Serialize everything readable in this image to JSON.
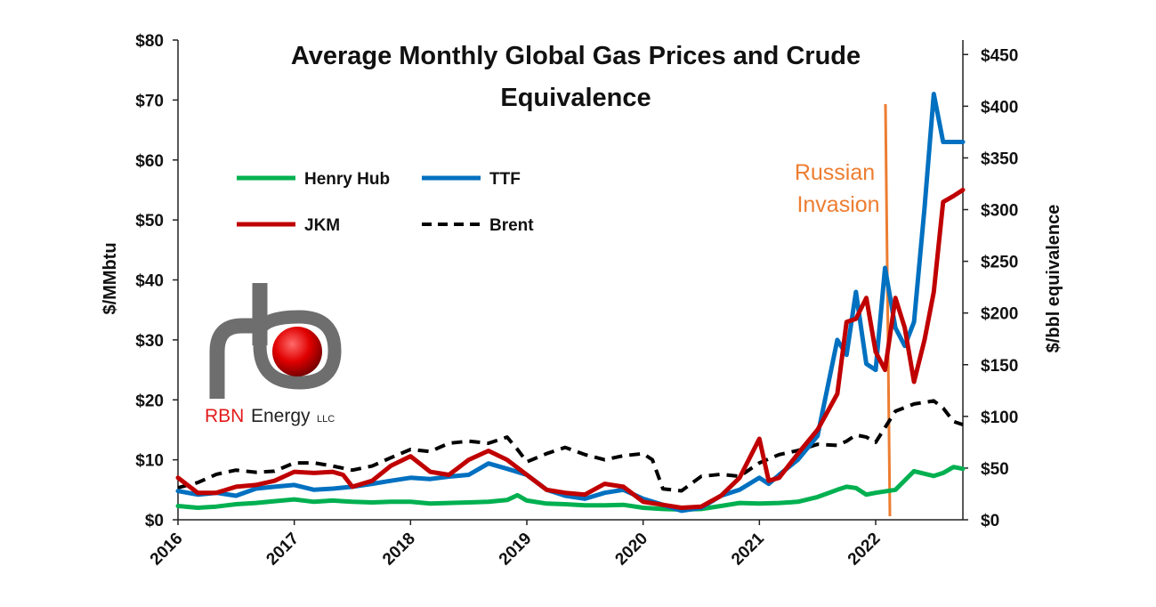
{
  "chart_data": {
    "type": "line",
    "title_lines": [
      "Average Monthly Global Gas Prices and Crude",
      "Equivalence"
    ],
    "ylabel": "$/MMbtu",
    "y2label": "$/bbl equivalence",
    "ylim": [
      0,
      80
    ],
    "y2lim": [
      0,
      464
    ],
    "yticks": [
      "$0",
      "$10",
      "$20",
      "$30",
      "$40",
      "$50",
      "$60",
      "$70",
      "$80"
    ],
    "y2ticks": [
      "$0",
      "$50",
      "$100",
      "$150",
      "$200",
      "$250",
      "$300",
      "$350",
      "$400",
      "$450"
    ],
    "xticks": [
      "2016",
      "2017",
      "2018",
      "2019",
      "2020",
      "2021",
      "2022"
    ],
    "xlim": [
      2016,
      2022.75
    ],
    "annotation": {
      "lines": [
        "Russian",
        "Invasion"
      ],
      "x": 2022.15,
      "color": "#ED7D31"
    },
    "series": [
      {
        "name": "Henry Hub",
        "color": "#00B050",
        "dash": false,
        "axis": "left",
        "x": [
          2016,
          2016.17,
          2016.33,
          2016.5,
          2016.67,
          2016.83,
          2017,
          2017.17,
          2017.33,
          2017.5,
          2017.67,
          2017.83,
          2018,
          2018.17,
          2018.33,
          2018.5,
          2018.67,
          2018.83,
          2018.92,
          2019,
          2019.17,
          2019.33,
          2019.5,
          2019.67,
          2019.83,
          2020,
          2020.17,
          2020.33,
          2020.5,
          2020.67,
          2020.83,
          2021,
          2021.17,
          2021.33,
          2021.5,
          2021.67,
          2021.75,
          2021.83,
          2021.92,
          2022,
          2022.17,
          2022.33,
          2022.5,
          2022.58,
          2022.67,
          2022.75
        ],
        "values": [
          2.3,
          2.0,
          2.2,
          2.6,
          2.8,
          3.1,
          3.4,
          3.0,
          3.2,
          3.0,
          2.9,
          3.0,
          3.0,
          2.7,
          2.8,
          2.9,
          3.0,
          3.3,
          4.1,
          3.2,
          2.7,
          2.6,
          2.4,
          2.4,
          2.5,
          2.0,
          1.8,
          1.7,
          1.8,
          2.3,
          2.8,
          2.7,
          2.8,
          3.0,
          3.8,
          5.0,
          5.5,
          5.3,
          4.2,
          4.5,
          5.0,
          8.1,
          7.3,
          7.8,
          8.8,
          8.5
        ]
      },
      {
        "name": "TTF",
        "color": "#0070C0",
        "dash": false,
        "axis": "left",
        "x": [
          2016,
          2016.17,
          2016.33,
          2016.5,
          2016.67,
          2016.83,
          2017,
          2017.17,
          2017.33,
          2017.5,
          2017.67,
          2017.83,
          2018,
          2018.17,
          2018.33,
          2018.5,
          2018.67,
          2018.83,
          2019,
          2019.17,
          2019.33,
          2019.5,
          2019.67,
          2019.83,
          2020,
          2020.17,
          2020.33,
          2020.5,
          2020.67,
          2020.83,
          2021,
          2021.08,
          2021.17,
          2021.33,
          2021.5,
          2021.67,
          2021.75,
          2021.83,
          2021.92,
          2022,
          2022.08,
          2022.17,
          2022.25,
          2022.33,
          2022.42,
          2022.5,
          2022.58,
          2022.67,
          2022.75
        ],
        "values": [
          4.8,
          4.2,
          4.5,
          4.0,
          5.2,
          5.5,
          5.8,
          5.0,
          5.2,
          5.5,
          6.0,
          6.5,
          7.0,
          6.8,
          7.2,
          7.5,
          9.4,
          8.5,
          7.5,
          5.0,
          4.0,
          3.5,
          4.5,
          5.0,
          3.5,
          2.5,
          1.5,
          2.0,
          4.0,
          5.0,
          7.0,
          6.0,
          7.5,
          10.0,
          14.0,
          30.0,
          27.5,
          38.0,
          26.0,
          25.0,
          42.0,
          32.0,
          29.0,
          33.0,
          52.0,
          71.0,
          63.0,
          63.0,
          63.0
        ]
      },
      {
        "name": "JKM",
        "color": "#C00000",
        "dash": false,
        "axis": "left",
        "x": [
          2016,
          2016.17,
          2016.33,
          2016.5,
          2016.67,
          2016.83,
          2017,
          2017.17,
          2017.33,
          2017.42,
          2017.5,
          2017.67,
          2017.83,
          2018,
          2018.17,
          2018.33,
          2018.5,
          2018.67,
          2018.83,
          2019,
          2019.17,
          2019.33,
          2019.5,
          2019.67,
          2019.83,
          2020,
          2020.17,
          2020.33,
          2020.5,
          2020.67,
          2020.83,
          2021,
          2021.08,
          2021.17,
          2021.33,
          2021.5,
          2021.67,
          2021.75,
          2021.83,
          2021.92,
          2022,
          2022.08,
          2022.17,
          2022.25,
          2022.33,
          2022.42,
          2022.5,
          2022.58,
          2022.67,
          2022.75
        ],
        "values": [
          7.0,
          4.5,
          4.5,
          5.5,
          5.8,
          6.5,
          8.0,
          7.8,
          8.0,
          7.5,
          5.5,
          6.5,
          9.0,
          10.6,
          8.0,
          7.5,
          10.0,
          11.5,
          10.0,
          7.5,
          5.0,
          4.5,
          4.2,
          6.0,
          5.5,
          3.0,
          2.5,
          2.0,
          2.2,
          4.0,
          7.0,
          13.5,
          6.5,
          7.0,
          11.0,
          15.0,
          21.0,
          33.0,
          33.5,
          37.0,
          28.0,
          25.0,
          37.0,
          32.0,
          23.0,
          30.0,
          38.0,
          53.0,
          54.0,
          55.0
        ]
      },
      {
        "name": "Brent",
        "color": "#000000",
        "dash": true,
        "axis": "right",
        "x": [
          2016,
          2016.17,
          2016.33,
          2016.5,
          2016.67,
          2016.83,
          2017,
          2017.17,
          2017.33,
          2017.5,
          2017.67,
          2017.83,
          2018,
          2018.17,
          2018.33,
          2018.5,
          2018.67,
          2018.83,
          2018.92,
          2019,
          2019.17,
          2019.33,
          2019.5,
          2019.67,
          2019.83,
          2020,
          2020.08,
          2020.17,
          2020.33,
          2020.5,
          2020.67,
          2020.83,
          2021,
          2021.17,
          2021.33,
          2021.5,
          2021.67,
          2021.75,
          2021.83,
          2021.92,
          2022,
          2022.17,
          2022.33,
          2022.5,
          2022.58,
          2022.67,
          2022.75
        ],
        "values": [
          31,
          36,
          44,
          48,
          46,
          47,
          55,
          55,
          52,
          48,
          52,
          60,
          68,
          66,
          74,
          76,
          74,
          80,
          68,
          56,
          64,
          70,
          63,
          58,
          62,
          64,
          58,
          30,
          28,
          42,
          44,
          42,
          55,
          63,
          67,
          73,
          72,
          76,
          82,
          80,
          75,
          105,
          112,
          115,
          108,
          95,
          92
        ]
      }
    ]
  },
  "logo": {
    "brand": "RBN",
    "name": "Energy",
    "suffix": "LLC"
  }
}
